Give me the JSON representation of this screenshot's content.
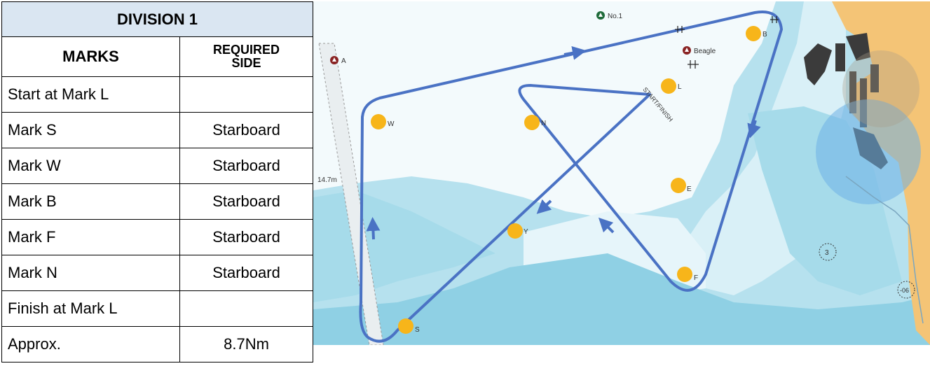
{
  "table": {
    "division_title": "DIVISION 1",
    "col_marks_header": "MARKS",
    "col_side_header_line1": "REQUIRED",
    "col_side_header_line2": "SIDE",
    "rows": [
      {
        "mark": "Start at Mark L",
        "side": ""
      },
      {
        "mark": "Mark S",
        "side": "Starboard"
      },
      {
        "mark": "Mark W",
        "side": "Starboard"
      },
      {
        "mark": "Mark B",
        "side": "Starboard"
      },
      {
        "mark": "Mark F",
        "side": "Starboard"
      },
      {
        "mark": "Mark N",
        "side": "Starboard"
      },
      {
        "mark": "Finish at Mark L",
        "side": ""
      },
      {
        "mark": "Approx.",
        "side": "8.7Nm"
      }
    ]
  },
  "map": {
    "marks": {
      "B": "B",
      "L": "L",
      "W": "W",
      "N": "N",
      "E": "E",
      "Y": "Y",
      "F": "F",
      "S": "S"
    },
    "buoys": {
      "no1": "No.1",
      "a": "A",
      "beagle": "Beagle"
    },
    "start_finish_label": "START/FINISH",
    "depth_label": "14.7m",
    "sounding_3": "3",
    "sounding_06": "-06",
    "colors": {
      "course_line": "#4a72c4",
      "mark_fill": "#f7b51a",
      "deep_water": "#8fd0e4",
      "mid_water": "#b6e1ee",
      "shallow_water": "#d9f0f7",
      "sand": "#e9f6fa",
      "land": "#f4c476",
      "exclusion_zone": "#6eb0e6"
    }
  }
}
